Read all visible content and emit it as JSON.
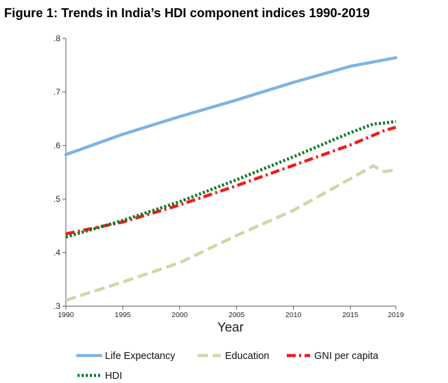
{
  "chart_data": {
    "type": "line",
    "title": "Figure 1: Trends in India’s HDI component indices 1990-2019",
    "xlabel": "Year",
    "ylabel": "",
    "xlim": [
      1990,
      2019
    ],
    "ylim": [
      0.3,
      0.8
    ],
    "x_ticks": [
      1990,
      1995,
      2000,
      2005,
      2010,
      2015,
      2019
    ],
    "x_tick_labels": [
      "1990",
      "1995",
      "2000",
      "2005",
      "2010",
      "2015",
      "2019"
    ],
    "y_ticks": [
      0.3,
      0.4,
      0.5,
      0.6,
      0.7,
      0.8
    ],
    "y_tick_labels": [
      ".3",
      ".4",
      ".5",
      ".6",
      ".7",
      ".8"
    ],
    "grid": false,
    "legend_position": "bottom",
    "series": [
      {
        "name": "Life Expectancy",
        "color": "#7fb4df",
        "style": "solid",
        "x": [
          1990,
          1995,
          2000,
          2005,
          2010,
          2015,
          2019
        ],
        "values": [
          0.583,
          0.621,
          0.654,
          0.685,
          0.718,
          0.748,
          0.764
        ]
      },
      {
        "name": "Education",
        "color": "#d6d3a8",
        "style": "dashed",
        "x": [
          1990,
          1995,
          2000,
          2005,
          2010,
          2015,
          2017,
          2018,
          2019
        ],
        "values": [
          0.311,
          0.345,
          0.381,
          0.432,
          0.479,
          0.538,
          0.562,
          0.551,
          0.555
        ]
      },
      {
        "name": "GNI per capita",
        "color": "#ee1c1c",
        "style": "dash-dot",
        "x": [
          1990,
          1995,
          2000,
          2005,
          2010,
          2015,
          2017,
          2018,
          2019
        ],
        "values": [
          0.435,
          0.457,
          0.489,
          0.525,
          0.563,
          0.601,
          0.619,
          0.628,
          0.634
        ]
      },
      {
        "name": "HDI",
        "color": "#0d7a20",
        "style": "dotted",
        "x": [
          1990,
          1995,
          2000,
          2005,
          2010,
          2015,
          2017,
          2018,
          2019
        ],
        "values": [
          0.429,
          0.46,
          0.495,
          0.536,
          0.579,
          0.624,
          0.64,
          0.642,
          0.645
        ]
      }
    ]
  }
}
